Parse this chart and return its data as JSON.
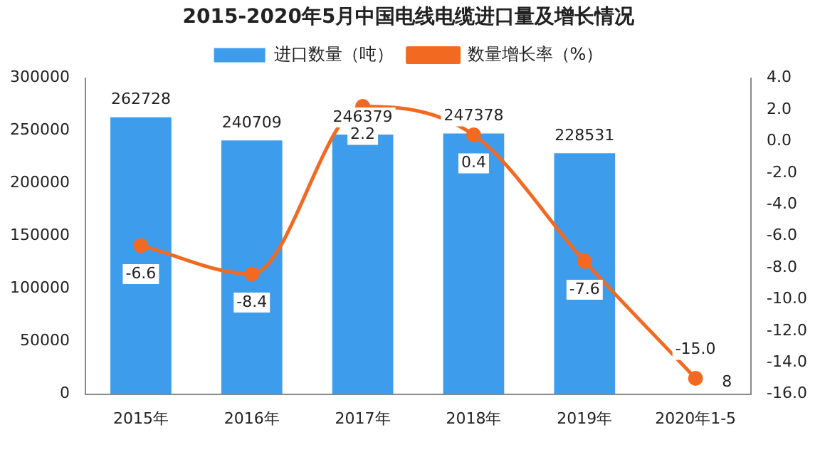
{
  "chart_data": {
    "type": "bar",
    "title": "2015-2020年5月中国电线电缆进口量及增长情况",
    "categories": [
      "2015年",
      "2016年",
      "2017年",
      "2018年",
      "2019年",
      "2020年1-5"
    ],
    "series": [
      {
        "name": "进口数量（吨）",
        "color": "#3e9ced",
        "values": [
          262728,
          240709,
          246379,
          247378,
          228531,
          8
        ],
        "value_labels": [
          "262728",
          "240709",
          "246379",
          "247378",
          "228531",
          "8"
        ]
      },
      {
        "name": "数量增长率（%）",
        "type": "line",
        "axis": "y2",
        "color": "#f26a22",
        "values": [
          -6.6,
          -8.4,
          2.2,
          0.4,
          -7.6,
          -15.0
        ],
        "value_labels": [
          "-6.6",
          "-8.4",
          "2.2",
          "0.4",
          "-7.6",
          "-15.0"
        ]
      }
    ],
    "ylim": [
      0,
      300000
    ],
    "yticks": [
      0,
      50000,
      100000,
      150000,
      200000,
      250000,
      300000
    ],
    "y2lim": [
      -16,
      4
    ],
    "y2ticks": [
      {
        "value": -16,
        "label": "-16.0"
      },
      {
        "value": -14,
        "label": "-14.0"
      },
      {
        "value": -12,
        "label": "-12.0"
      },
      {
        "value": -10,
        "label": "-10.0"
      },
      {
        "value": -8,
        "label": "-8.0"
      },
      {
        "value": -6,
        "label": "-6.0"
      },
      {
        "value": -4,
        "label": "-4.0"
      },
      {
        "value": -2,
        "label": "-2.0"
      },
      {
        "value": 0,
        "label": "0.0"
      },
      {
        "value": 2,
        "label": "2.0"
      },
      {
        "value": 4,
        "label": "4.0"
      }
    ],
    "grid": false,
    "legend": "top",
    "marker": "circle"
  }
}
